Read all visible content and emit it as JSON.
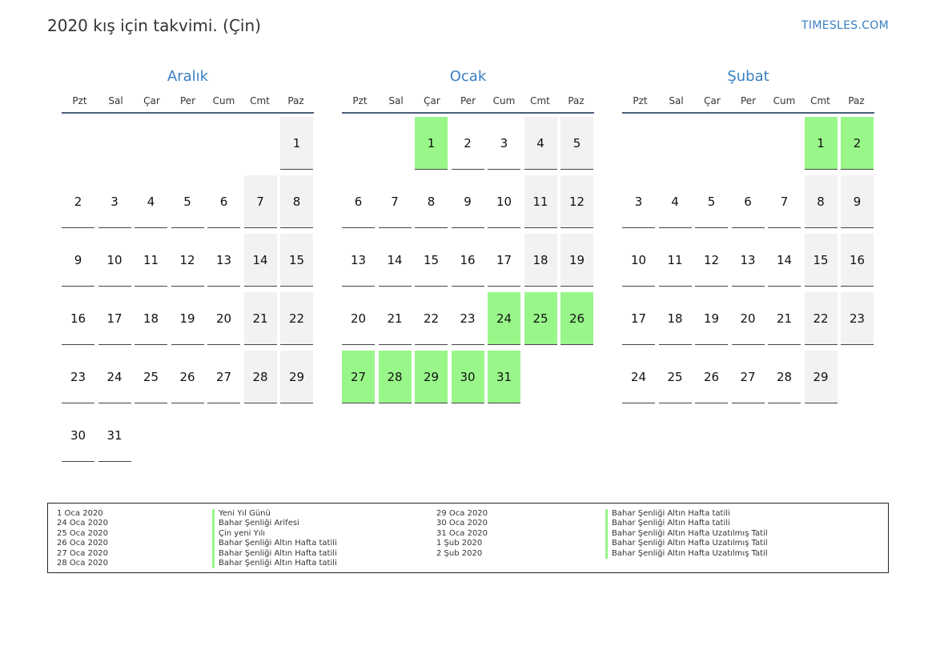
{
  "header": {
    "title": "2020 kış için takvimi. (Çin)",
    "site": "TIMESLES.COM"
  },
  "weekdays": [
    "Pzt",
    "Sal",
    "Çar",
    "Per",
    "Cum",
    "Cmt",
    "Paz"
  ],
  "colors": {
    "accent": "#3a7fc1",
    "holiday": "#99f78a",
    "weekend": "#f2f2f2"
  },
  "months": [
    {
      "name": "Aralık",
      "start_offset": 6,
      "days": 31,
      "holidays": []
    },
    {
      "name": "Ocak",
      "start_offset": 2,
      "days": 31,
      "holidays": [
        1,
        24,
        25,
        26,
        27,
        28,
        29,
        30,
        31
      ]
    },
    {
      "name": "Şubat",
      "start_offset": 5,
      "days": 29,
      "holidays": [
        1,
        2
      ]
    }
  ],
  "legend": [
    {
      "date": "1 Oca 2020",
      "name": "Yeni Yıl Günü"
    },
    {
      "date": "24 Oca 2020",
      "name": "Bahar Şenliği Arifesi"
    },
    {
      "date": "25 Oca 2020",
      "name": "Çin yeni Yılı"
    },
    {
      "date": "26 Oca 2020",
      "name": "Bahar Şenliği Altın Hafta tatili"
    },
    {
      "date": "27 Oca 2020",
      "name": "Bahar Şenliği Altın Hafta tatili"
    },
    {
      "date": "28 Oca 2020",
      "name": "Bahar Şenliği Altın Hafta tatili"
    },
    {
      "date": "29 Oca 2020",
      "name": "Bahar Şenliği Altın Hafta tatili"
    },
    {
      "date": "30 Oca 2020",
      "name": "Bahar Şenliği Altın Hafta tatili"
    },
    {
      "date": "31 Oca 2020",
      "name": "Bahar Şenliği Altın Hafta Uzatılmış Tatil"
    },
    {
      "date": "1 Şub 2020",
      "name": "Bahar Şenliği Altın Hafta Uzatılmış Tatil"
    },
    {
      "date": "2 Şub 2020",
      "name": "Bahar Şenliği Altın Hafta Uzatılmış Tatil"
    }
  ]
}
